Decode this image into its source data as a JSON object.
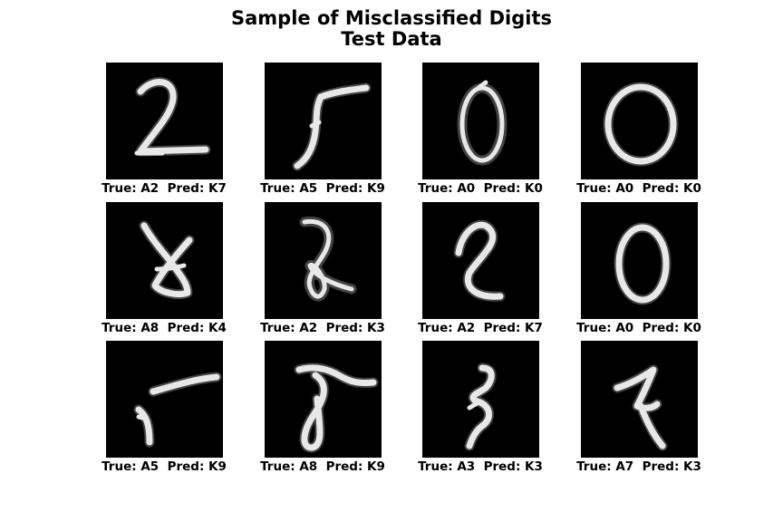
{
  "figure": {
    "title_line_1": "Sample of Misclassified Digits",
    "title_line_2": "Test Data"
  },
  "samples": [
    {
      "true_label": "A2",
      "pred_label": "K7",
      "caption": "True: A2  Pred: K7"
    },
    {
      "true_label": "A5",
      "pred_label": "K9",
      "caption": "True: A5  Pred: K9"
    },
    {
      "true_label": "A0",
      "pred_label": "K0",
      "caption": "True: A0  Pred: K0"
    },
    {
      "true_label": "A0",
      "pred_label": "K0",
      "caption": "True: A0  Pred: K0"
    },
    {
      "true_label": "A8",
      "pred_label": "K4",
      "caption": "True: A8  Pred: K4"
    },
    {
      "true_label": "A2",
      "pred_label": "K3",
      "caption": "True: A2  Pred: K3"
    },
    {
      "true_label": "A2",
      "pred_label": "K7",
      "caption": "True: A2  Pred: K7"
    },
    {
      "true_label": "A0",
      "pred_label": "K0",
      "caption": "True: A0  Pred: K0"
    },
    {
      "true_label": "A5",
      "pred_label": "K9",
      "caption": "True: A5  Pred: K9"
    },
    {
      "true_label": "A8",
      "pred_label": "K9",
      "caption": "True: A8  Pred: K9"
    },
    {
      "true_label": "A3",
      "pred_label": "K3",
      "caption": "True: A3  Pred: K3"
    },
    {
      "true_label": "A7",
      "pred_label": "K3",
      "caption": "True: A7  Pred: K3"
    }
  ],
  "colors": {
    "panel_background": "#000000",
    "digit_stroke": "#e8e8e8",
    "page_background": "#ffffff"
  }
}
